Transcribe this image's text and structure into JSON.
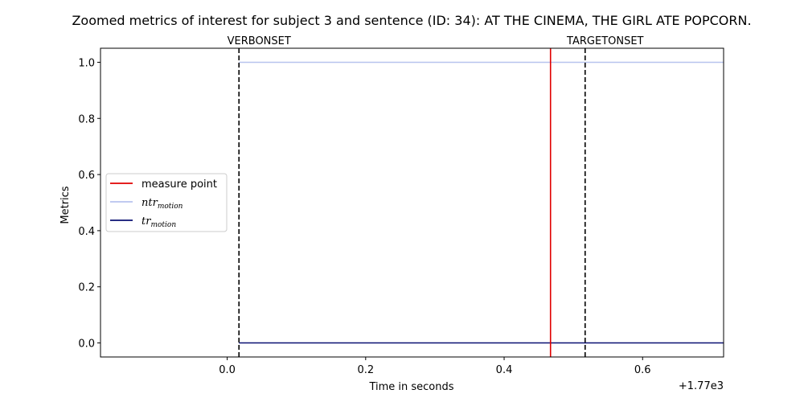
{
  "chart_data": {
    "type": "line",
    "title": "Zoomed metrics of interest for subject 3 and sentence (ID: 34): AT THE CINEMA, THE GIRL ATE POPCORN.",
    "xlabel": "Time in seconds",
    "ylabel": "Metrics",
    "x_offset_label": "+1.77e3",
    "xlim": [
      -0.183,
      0.717
    ],
    "ylim": [
      -0.05,
      1.05
    ],
    "x_ticks": [
      0.0,
      0.2,
      0.4,
      0.6
    ],
    "x_tick_labels": [
      "0.0",
      "0.2",
      "0.4",
      "0.6"
    ],
    "y_ticks": [
      0.0,
      0.2,
      0.4,
      0.6,
      0.8,
      1.0
    ],
    "y_tick_labels": [
      "0.0",
      "0.2",
      "0.4",
      "0.6",
      "0.8",
      "1.0"
    ],
    "grid": false,
    "legend_position": "center-left",
    "events": [
      {
        "label": "VERBONSET",
        "x": 0.017,
        "color": "#000000",
        "style": "dashed"
      },
      {
        "label": "TARGETONSET",
        "x": 0.517,
        "color": "#000000",
        "style": "dashed"
      }
    ],
    "measure_point": {
      "name": "measure point",
      "x": 0.467,
      "color": "#e00000"
    },
    "series": [
      {
        "name_main": "ntr",
        "name_sub": "motion",
        "color": "#b7c3ee",
        "x": [
          0.017,
          0.717
        ],
        "y": [
          1.0,
          1.0
        ]
      },
      {
        "name_main": "tr",
        "name_sub": "motion",
        "color": "#0a1172",
        "x": [
          0.017,
          0.717
        ],
        "y": [
          0.0,
          0.0
        ]
      }
    ]
  }
}
